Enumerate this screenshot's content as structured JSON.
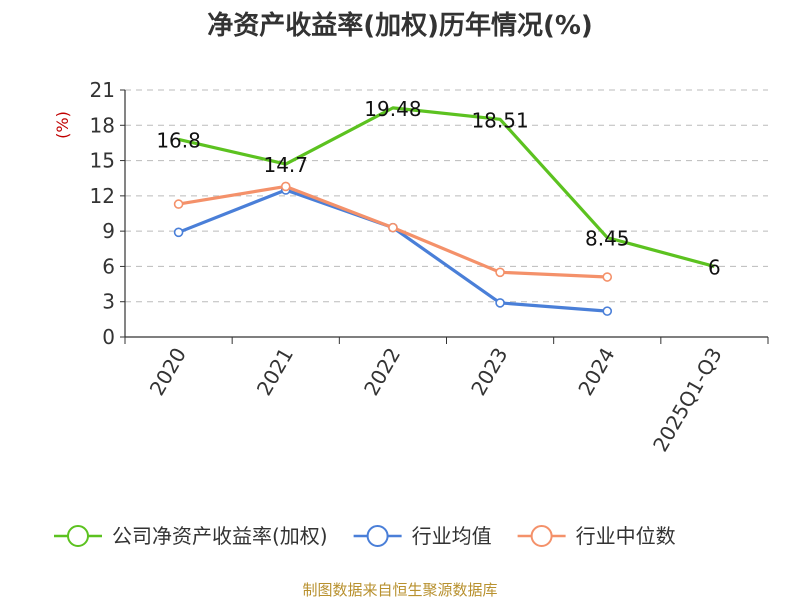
{
  "chart_data": {
    "type": "line",
    "title": "净资产收益率(加权)历年情况(%)",
    "ylabel": "(%)",
    "categories": [
      "2020",
      "2021",
      "2022",
      "2023",
      "2024",
      "2025Q1-Q3"
    ],
    "ylim": [
      0,
      21
    ],
    "yticks": [
      0,
      3,
      6,
      9,
      12,
      15,
      18,
      21
    ],
    "grid": true,
    "legend_position": "bottom",
    "series": [
      {
        "name": "公司净资产收益率(加权)",
        "color": "#5cc220",
        "values": [
          16.8,
          14.7,
          19.48,
          18.51,
          8.45,
          6
        ],
        "labels": [
          "16.8",
          "14.7",
          "19.48",
          "18.51",
          "8.45",
          "6"
        ]
      },
      {
        "name": "行业均值",
        "color": "#4a7fd8",
        "values": [
          8.9,
          12.5,
          9.3,
          2.9,
          2.2,
          null
        ]
      },
      {
        "name": "行业中位数",
        "color": "#f4916a",
        "values": [
          11.3,
          12.8,
          9.3,
          5.5,
          5.1,
          null
        ]
      }
    ]
  },
  "source": "制图数据来自恒生聚源数据库"
}
